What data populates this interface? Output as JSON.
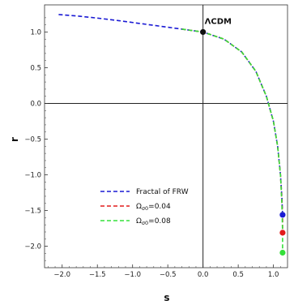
{
  "chart_data": {
    "type": "line",
    "xlabel": "s",
    "ylabel": "r",
    "xlim": [
      -2.25,
      1.2
    ],
    "ylim": [
      -2.3,
      1.38
    ],
    "x_ticks": [
      -2.0,
      -1.5,
      -1.0,
      -0.5,
      0.0,
      0.5,
      1.0
    ],
    "y_ticks": [
      1.0,
      0.5,
      0.0,
      -0.5,
      -1.0,
      -1.5,
      -2.0
    ],
    "x_tick_labels": [
      "−2.0",
      "−1.5",
      "−1.0",
      "−0.5",
      "0.0",
      "0.5",
      "1.0"
    ],
    "y_tick_labels": [
      "1.0",
      "0.5",
      "0.0",
      "−0.5",
      "−1.0",
      "−1.5",
      "−2.0"
    ],
    "grid": false,
    "legend_position": "lower-center",
    "series": [
      {
        "name": "Fractal of FRW",
        "color": "#1a1ad4",
        "dash": "dashed",
        "points": [
          [
            -2.05,
            1.245
          ],
          [
            -1.8,
            1.225
          ],
          [
            -1.5,
            1.195
          ],
          [
            -1.2,
            1.16
          ],
          [
            -0.9,
            1.12
          ],
          [
            -0.6,
            1.08
          ],
          [
            -0.3,
            1.04
          ],
          [
            0.0,
            1.0
          ],
          [
            0.3,
            0.9
          ],
          [
            0.55,
            0.72
          ],
          [
            0.75,
            0.45
          ],
          [
            0.9,
            0.1
          ],
          [
            1.0,
            -0.25
          ],
          [
            1.06,
            -0.6
          ],
          [
            1.1,
            -1.0
          ],
          [
            1.12,
            -1.3
          ],
          [
            1.13,
            -1.56
          ]
        ],
        "endpoint": [
          1.13,
          -1.56
        ]
      },
      {
        "name_prefix": "Ω",
        "name_sub": "σ0",
        "name_suffix": "=0.04",
        "color": "#e21b1b",
        "dash": "dashed",
        "points": [
          [
            -0.3,
            1.04
          ],
          [
            0.0,
            1.0
          ],
          [
            0.3,
            0.9
          ],
          [
            0.55,
            0.72
          ],
          [
            0.75,
            0.45
          ],
          [
            0.9,
            0.1
          ],
          [
            1.0,
            -0.25
          ],
          [
            1.06,
            -0.6
          ],
          [
            1.1,
            -1.0
          ],
          [
            1.12,
            -1.35
          ],
          [
            1.13,
            -1.6
          ],
          [
            1.13,
            -1.81
          ]
        ],
        "endpoint": [
          1.13,
          -1.81
        ]
      },
      {
        "name_prefix": "Ω",
        "name_sub": "σ0",
        "name_suffix": "=0.08",
        "color": "#35e03a",
        "dash": "dashed",
        "points": [
          [
            -0.3,
            1.04
          ],
          [
            0.0,
            1.0
          ],
          [
            0.3,
            0.9
          ],
          [
            0.55,
            0.72
          ],
          [
            0.75,
            0.45
          ],
          [
            0.9,
            0.1
          ],
          [
            1.0,
            -0.25
          ],
          [
            1.06,
            -0.6
          ],
          [
            1.1,
            -1.0
          ],
          [
            1.12,
            -1.4
          ],
          [
            1.13,
            -1.8
          ],
          [
            1.13,
            -2.09
          ]
        ],
        "endpoint": [
          1.13,
          -2.09
        ]
      }
    ],
    "annotations": [
      {
        "text": "ΛCDM",
        "x": 0.0,
        "y": 1.0,
        "marker_color": "#111111"
      }
    ]
  }
}
